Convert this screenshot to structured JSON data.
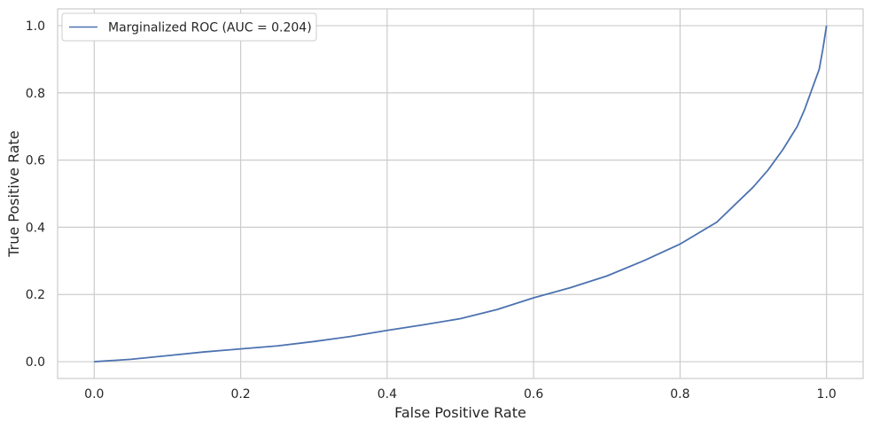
{
  "chart_data": {
    "type": "line",
    "title": "",
    "xlabel": "False Positive Rate",
    "ylabel": "True Positive Rate",
    "xlim": [
      -0.05,
      1.05
    ],
    "ylim": [
      -0.05,
      1.05
    ],
    "xticks": [
      "0.0",
      "0.2",
      "0.4",
      "0.6",
      "0.8",
      "1.0"
    ],
    "yticks": [
      "0.0",
      "0.2",
      "0.4",
      "0.6",
      "0.8",
      "1.0"
    ],
    "grid": true,
    "legend_position": "upper-left",
    "series": [
      {
        "name": "Marginalized ROC (AUC = 0.204)",
        "color": "#4c72b0",
        "x": [
          0.0,
          0.05,
          0.1,
          0.15,
          0.2,
          0.25,
          0.3,
          0.35,
          0.4,
          0.45,
          0.5,
          0.55,
          0.6,
          0.65,
          0.7,
          0.75,
          0.8,
          0.85,
          0.9,
          0.92,
          0.94,
          0.96,
          0.97,
          0.98,
          0.99,
          0.995,
          1.0
        ],
        "y": [
          0.0,
          0.007,
          0.018,
          0.029,
          0.038,
          0.047,
          0.06,
          0.075,
          0.093,
          0.11,
          0.128,
          0.155,
          0.19,
          0.22,
          0.255,
          0.3,
          0.35,
          0.415,
          0.52,
          0.57,
          0.63,
          0.7,
          0.75,
          0.81,
          0.87,
          0.93,
          1.0
        ]
      }
    ]
  }
}
